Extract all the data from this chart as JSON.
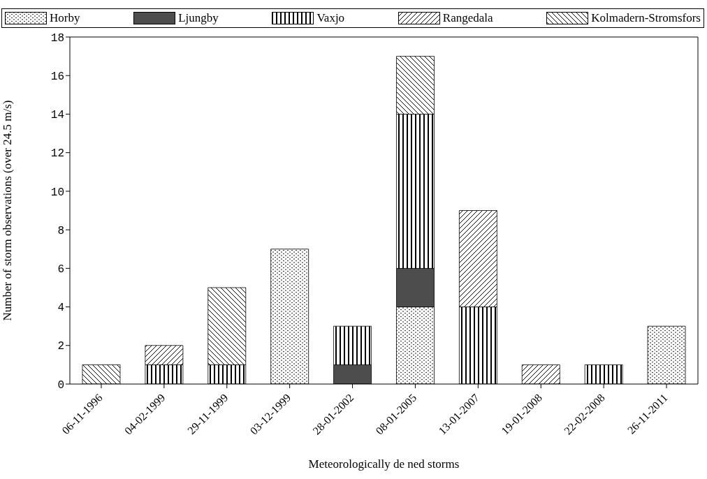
{
  "chart_data": {
    "type": "bar",
    "stacked": true,
    "xlabel": "Meteorologically de ned storms",
    "ylabel": "Number of storm observations (over 24.5 m/s)",
    "categories": [
      "06-11-1996",
      "04-02-1999",
      "29-11-1999",
      "03-12-1999",
      "28-01-2002",
      "08-01-2005",
      "13-01-2007",
      "19-01-2008",
      "22-02-2008",
      "26-11-2011"
    ],
    "series": [
      {
        "name": "Horby",
        "color": "#000000",
        "values": [
          0,
          0,
          0,
          7,
          0,
          4,
          0,
          0,
          0,
          3
        ]
      },
      {
        "name": "Ljungby",
        "color": "#4d4d4d",
        "values": [
          0,
          0,
          0,
          0,
          1,
          2,
          0,
          0,
          0,
          0
        ]
      },
      {
        "name": "Vaxjo",
        "color": "#000000",
        "values": [
          0,
          1,
          1,
          0,
          2,
          8,
          4,
          0,
          1,
          0
        ]
      },
      {
        "name": "Rangedala",
        "color": "#000000",
        "values": [
          0,
          1,
          0,
          0,
          0,
          0,
          5,
          1,
          0,
          0
        ]
      },
      {
        "name": "Kolmadern-Stromsfors",
        "color": "#000000",
        "values": [
          1,
          0,
          4,
          0,
          0,
          3,
          0,
          0,
          0,
          0
        ]
      }
    ],
    "ylim": [
      0,
      18
    ],
    "yticks": [
      0,
      2,
      4,
      6,
      8,
      10,
      12,
      14,
      16,
      18
    ],
    "grid": false,
    "legend": "top"
  }
}
